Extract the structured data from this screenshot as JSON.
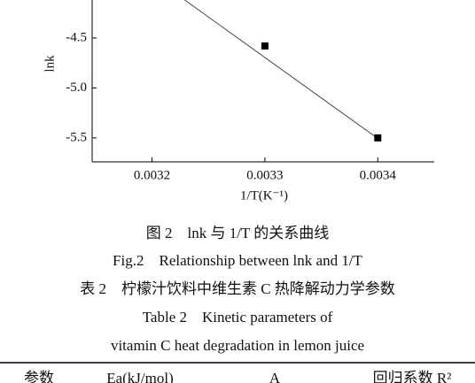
{
  "chart_data": {
    "type": "scatter",
    "xlabel": "1/T(K⁻¹)",
    "ylabel": "lnk",
    "xlim": [
      0.003147,
      0.00345
    ],
    "ylim": [
      -5.74,
      -4.12
    ],
    "xticks": [
      0.0032,
      0.0033,
      0.0034
    ],
    "yticks": [
      -5.5,
      {
        "value": -5.0,
        "label": "-5.0"
      },
      -4.5
    ],
    "series": [
      {
        "color": "#000000",
        "x": [
          0.0033,
          0.0034
        ],
        "values": [
          -4.58,
          -5.5
        ]
      }
    ],
    "fit_line": {
      "color": "#444444",
      "x": [
        0.003229,
        0.003403
      ],
      "values": [
        -4.12,
        -5.53
      ]
    }
  },
  "captions": {
    "figure_cn": "图 2　lnk 与 1/T 的关系曲线",
    "figure_en": "Fig.2　Relationship between lnk and 1/T",
    "table_cn": "表 2　柠檬汁饮料中维生素 C 热降解动力学参数",
    "table_en_1": "Table 2　Kinetic parameters of",
    "table_en_2": "vitamin C heat degradation in lemon juice"
  },
  "table": {
    "header": [
      "参数",
      "Ea(kJ/mol)",
      "A",
      "回归系数 R²"
    ]
  }
}
